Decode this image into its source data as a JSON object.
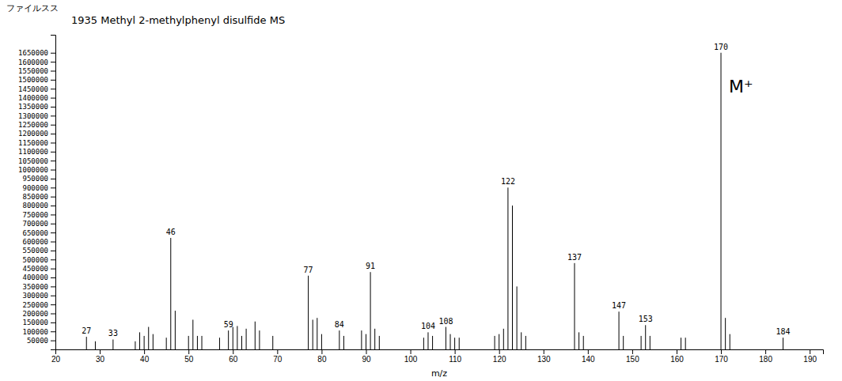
{
  "chart_data": {
    "type": "stem",
    "title": "1935  Methyl 2-methylphenyl disulfide   MS",
    "header_label": "ファイルスス",
    "xlabel": "m/z",
    "color": "#000000",
    "x": [
      27,
      29,
      33,
      38,
      39,
      40,
      41,
      42,
      45,
      46,
      47,
      50,
      51,
      52,
      53,
      57,
      59,
      60,
      61,
      62,
      63,
      65,
      66,
      69,
      77,
      78,
      79,
      80,
      84,
      85,
      89,
      90,
      91,
      92,
      93,
      103,
      104,
      105,
      108,
      109,
      110,
      111,
      119,
      120,
      121,
      122,
      123,
      124,
      125,
      126,
      137,
      138,
      139,
      147,
      148,
      152,
      153,
      154,
      161,
      162,
      170,
      171,
      172,
      184
    ],
    "values": [
      70000,
      45000,
      55000,
      45000,
      95000,
      75000,
      125000,
      85000,
      65000,
      620000,
      215000,
      75000,
      165000,
      75000,
      75000,
      65000,
      105000,
      125000,
      130000,
      75000,
      115000,
      155000,
      105000,
      75000,
      410000,
      165000,
      175000,
      85000,
      105000,
      75000,
      105000,
      85000,
      430000,
      115000,
      75000,
      65000,
      95000,
      75000,
      125000,
      85000,
      65000,
      65000,
      75000,
      85000,
      115000,
      900000,
      800000,
      350000,
      95000,
      75000,
      480000,
      95000,
      75000,
      210000,
      75000,
      75000,
      135000,
      75000,
      65000,
      65000,
      1650000,
      175000,
      85000,
      65000
    ],
    "x_labels": [
      "27",
      null,
      "33",
      null,
      null,
      null,
      null,
      null,
      null,
      "46",
      null,
      null,
      null,
      null,
      null,
      null,
      "59",
      null,
      null,
      null,
      null,
      null,
      null,
      null,
      "77",
      null,
      null,
      null,
      "84",
      null,
      null,
      null,
      "91",
      null,
      null,
      null,
      "104",
      null,
      "108",
      null,
      null,
      null,
      null,
      null,
      null,
      "122",
      null,
      null,
      null,
      null,
      "137",
      null,
      null,
      "147",
      null,
      null,
      "153",
      null,
      null,
      null,
      "170",
      null,
      null,
      "184"
    ],
    "annotations": [
      {
        "text": "M⁺",
        "x": 170,
        "y": 1650000
      }
    ],
    "xlim": [
      20,
      193
    ],
    "ylim": [
      0,
      1750000
    ],
    "xticks": [
      20,
      30,
      40,
      50,
      60,
      70,
      80,
      90,
      100,
      110,
      120,
      130,
      140,
      150,
      160,
      170,
      180,
      190
    ],
    "yticks": [
      50000,
      100000,
      150000,
      200000,
      250000,
      300000,
      350000,
      400000,
      450000,
      500000,
      550000,
      600000,
      650000,
      700000,
      750000,
      800000,
      850000,
      900000,
      950000,
      1000000,
      1050000,
      1100000,
      1150000,
      1200000,
      1250000,
      1300000,
      1350000,
      1400000,
      1450000,
      1500000,
      1550000,
      1600000,
      1650000
    ]
  }
}
